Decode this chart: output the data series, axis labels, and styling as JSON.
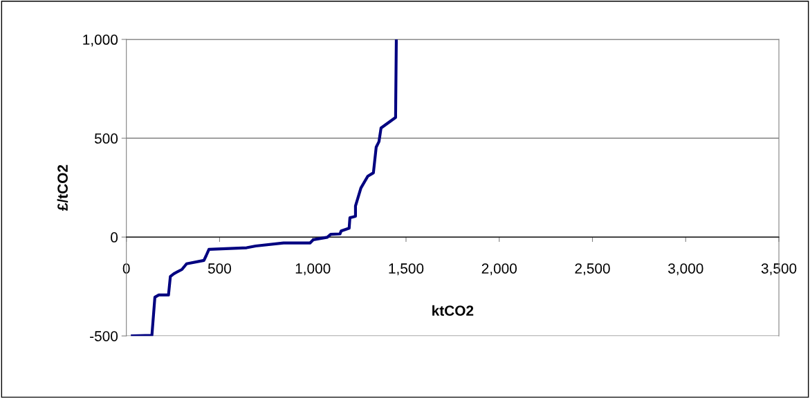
{
  "chart_data": {
    "type": "line",
    "xlabel": "ktCO2",
    "ylabel": "£/tCO2",
    "series": [
      {
        "color": "#000080",
        "x": [
          32,
          137,
          153,
          174,
          226,
          236,
          255,
          298,
          323,
          416,
          428,
          443,
          645,
          694,
          843,
          985,
          1003,
          1078,
          1096,
          1146,
          1152,
          1195,
          1199,
          1229,
          1229,
          1258,
          1295,
          1325,
          1340,
          1355,
          1366,
          1444,
          1448
        ],
        "values": [
          -500,
          -497,
          -304,
          -293,
          -293,
          -199,
          -185,
          -164,
          -135,
          -118,
          -94,
          -62,
          -54,
          -45,
          -30,
          -30,
          -13,
          -1,
          14,
          16,
          31,
          45,
          98,
          105,
          157,
          248,
          308,
          325,
          455,
          483,
          552,
          605,
          1000
        ]
      }
    ],
    "xlim": [
      0,
      3500
    ],
    "xticks": [
      {
        "value": 0,
        "label": "0"
      },
      {
        "value": 500,
        "label": "500"
      },
      {
        "value": 1000,
        "label": "1,000"
      },
      {
        "value": 1500,
        "label": "1,500"
      },
      {
        "value": 2000,
        "label": "2,000"
      },
      {
        "value": 2500,
        "label": "2,500"
      },
      {
        "value": 3000,
        "label": "3,000"
      },
      {
        "value": 3500,
        "label": "3,500"
      }
    ],
    "ylim": [
      -500,
      1000
    ],
    "yticks": [
      {
        "value": -500,
        "label": "-500"
      },
      {
        "value": 0,
        "label": "0"
      },
      {
        "value": 500,
        "label": "500"
      },
      {
        "value": 1000,
        "label": "1,000"
      }
    ],
    "grid": "y",
    "marker": "none",
    "line_style": "solid"
  }
}
